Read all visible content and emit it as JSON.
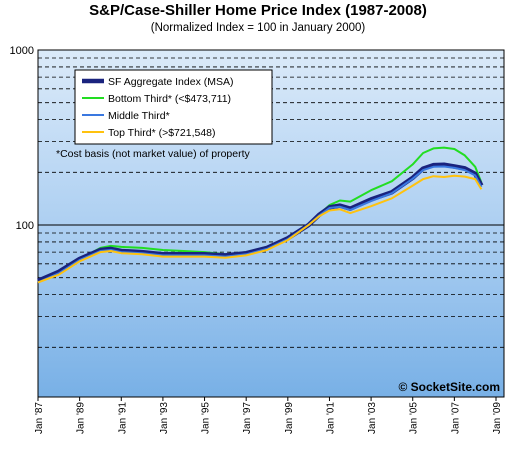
{
  "chart_data": {
    "type": "line",
    "title": "S&P/Case-Shiller Home Price Index (1987-2008)",
    "subtitle": "(Normalized Index = 100 in January 2000)",
    "y_scale": "log",
    "ylim": [
      10,
      1000
    ],
    "y_tick_labels": [
      {
        "value": 100,
        "label": "100"
      },
      {
        "value": 1000,
        "label": "1000"
      }
    ],
    "xlim": [
      1987,
      2009
    ],
    "x_ticks": [
      {
        "value": 1987,
        "label": "Jan '87"
      },
      {
        "value": 1989,
        "label": "Jan '89"
      },
      {
        "value": 1991,
        "label": "Jan '91"
      },
      {
        "value": 1993,
        "label": "Jan '93"
      },
      {
        "value": 1995,
        "label": "Jan '95"
      },
      {
        "value": 1997,
        "label": "Jan '97"
      },
      {
        "value": 1999,
        "label": "Jan '99"
      },
      {
        "value": 2001,
        "label": "Jan '01"
      },
      {
        "value": 2003,
        "label": "Jan '03"
      },
      {
        "value": 2005,
        "label": "Jan '05"
      },
      {
        "value": 2007,
        "label": "Jan '07"
      },
      {
        "value": 2009,
        "label": "Jan '09"
      }
    ],
    "grid": "dashed horizontal lines on log decades",
    "legend_position": "top-left",
    "note": "*Cost basis (not market value) of property",
    "watermark": "© SocketSite.com",
    "series": [
      {
        "name": "SF Aggregate Index",
        "legend_suffix": "(MSA)",
        "color": "#1a237e",
        "points": [
          [
            1987.0,
            48
          ],
          [
            1988.0,
            54
          ],
          [
            1989.0,
            64
          ],
          [
            1990.0,
            72
          ],
          [
            1990.5,
            73
          ],
          [
            1991.0,
            71
          ],
          [
            1992.0,
            70
          ],
          [
            1993.0,
            68
          ],
          [
            1994.0,
            68
          ],
          [
            1995.0,
            68
          ],
          [
            1996.0,
            67
          ],
          [
            1997.0,
            69
          ],
          [
            1998.0,
            74
          ],
          [
            1999.0,
            84
          ],
          [
            2000.0,
            100
          ],
          [
            2000.5,
            114
          ],
          [
            2001.0,
            126
          ],
          [
            2001.5,
            129
          ],
          [
            2002.0,
            124
          ],
          [
            2003.0,
            140
          ],
          [
            2004.0,
            154
          ],
          [
            2005.0,
            186
          ],
          [
            2005.5,
            210
          ],
          [
            2006.0,
            220
          ],
          [
            2006.5,
            221
          ],
          [
            2007.0,
            216
          ],
          [
            2007.5,
            211
          ],
          [
            2008.0,
            196
          ],
          [
            2008.3,
            168
          ]
        ]
      },
      {
        "name": "Bottom Third*",
        "legend_suffix": "(<$473,711)",
        "color": "#22dd22",
        "points": [
          [
            1987.0,
            48
          ],
          [
            1988.0,
            53
          ],
          [
            1989.0,
            64
          ],
          [
            1990.0,
            74
          ],
          [
            1990.5,
            76
          ],
          [
            1991.0,
            75
          ],
          [
            1992.0,
            74
          ],
          [
            1993.0,
            72
          ],
          [
            1994.0,
            71
          ],
          [
            1995.0,
            70
          ],
          [
            1996.0,
            68
          ],
          [
            1997.0,
            70
          ],
          [
            1998.0,
            75
          ],
          [
            1999.0,
            85
          ],
          [
            2000.0,
            100
          ],
          [
            2000.5,
            115
          ],
          [
            2001.0,
            130
          ],
          [
            2001.5,
            138
          ],
          [
            2002.0,
            136
          ],
          [
            2003.0,
            158
          ],
          [
            2004.0,
            178
          ],
          [
            2005.0,
            222
          ],
          [
            2005.5,
            258
          ],
          [
            2006.0,
            274
          ],
          [
            2006.5,
            277
          ],
          [
            2007.0,
            272
          ],
          [
            2007.5,
            250
          ],
          [
            2008.0,
            215
          ],
          [
            2008.3,
            175
          ]
        ]
      },
      {
        "name": "Middle Third*",
        "legend_suffix": "",
        "color": "#3a78e0",
        "points": [
          [
            1987.0,
            47
          ],
          [
            1988.0,
            53
          ],
          [
            1989.0,
            63
          ],
          [
            1990.0,
            71
          ],
          [
            1990.5,
            72
          ],
          [
            1991.0,
            70
          ],
          [
            1992.0,
            69
          ],
          [
            1993.0,
            67
          ],
          [
            1994.0,
            67
          ],
          [
            1995.0,
            67
          ],
          [
            1996.0,
            66
          ],
          [
            1997.0,
            68
          ],
          [
            1998.0,
            73
          ],
          [
            1999.0,
            83
          ],
          [
            2000.0,
            100
          ],
          [
            2000.5,
            113
          ],
          [
            2001.0,
            125
          ],
          [
            2001.5,
            127
          ],
          [
            2002.0,
            122
          ],
          [
            2003.0,
            137
          ],
          [
            2004.0,
            152
          ],
          [
            2005.0,
            184
          ],
          [
            2005.5,
            206
          ],
          [
            2006.0,
            215
          ],
          [
            2006.5,
            216
          ],
          [
            2007.0,
            212
          ],
          [
            2007.5,
            206
          ],
          [
            2008.0,
            192
          ],
          [
            2008.3,
            165
          ]
        ]
      },
      {
        "name": "Top Third*",
        "legend_suffix": "(>$721,548)",
        "color": "#ffc20e",
        "points": [
          [
            1987.0,
            47
          ],
          [
            1988.0,
            52
          ],
          [
            1989.0,
            62
          ],
          [
            1990.0,
            70
          ],
          [
            1990.5,
            71
          ],
          [
            1991.0,
            69
          ],
          [
            1992.0,
            68
          ],
          [
            1993.0,
            66
          ],
          [
            1994.0,
            66
          ],
          [
            1995.0,
            66
          ],
          [
            1996.0,
            65
          ],
          [
            1997.0,
            67
          ],
          [
            1998.0,
            72
          ],
          [
            1999.0,
            82
          ],
          [
            2000.0,
            100
          ],
          [
            2000.5,
            112
          ],
          [
            2001.0,
            121
          ],
          [
            2001.5,
            123
          ],
          [
            2002.0,
            117
          ],
          [
            2003.0,
            128
          ],
          [
            2004.0,
            142
          ],
          [
            2005.0,
            168
          ],
          [
            2005.5,
            183
          ],
          [
            2006.0,
            190
          ],
          [
            2006.5,
            188
          ],
          [
            2007.0,
            191
          ],
          [
            2007.5,
            189
          ],
          [
            2008.0,
            183
          ],
          [
            2008.3,
            160
          ]
        ]
      }
    ]
  }
}
